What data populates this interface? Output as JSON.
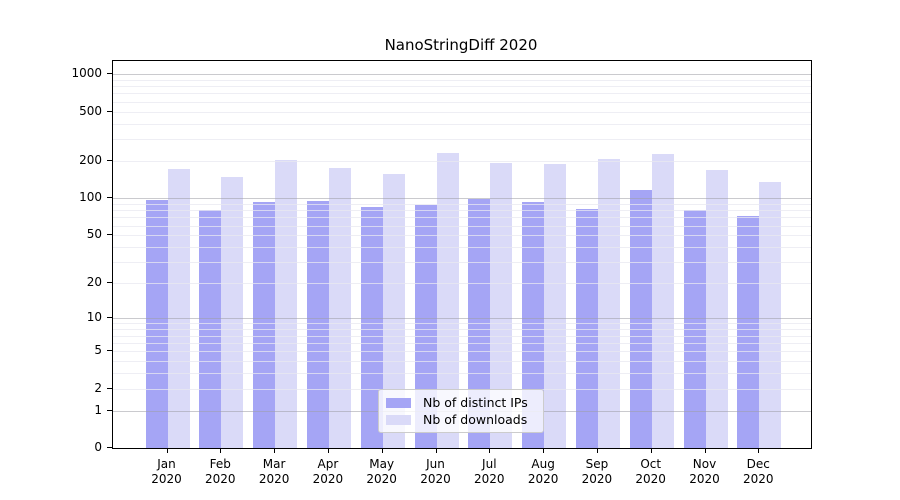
{
  "chart_data": {
    "type": "bar",
    "title": "NanoStringDiff 2020",
    "categories": [
      "Jan",
      "Feb",
      "Mar",
      "Apr",
      "May",
      "Jun",
      "Jul",
      "Aug",
      "Sep",
      "Oct",
      "Nov",
      "Dec"
    ],
    "year_label": "2020",
    "series": [
      {
        "name": "Nb of distinct IPs",
        "color": "#a5a5f5",
        "values": [
          96,
          80,
          94,
          95,
          85,
          89,
          98,
          94,
          82,
          117,
          80,
          72
        ]
      },
      {
        "name": "Nb of downloads",
        "color": "#dadaf8",
        "values": [
          172,
          149,
          205,
          175,
          158,
          232,
          192,
          189,
          206,
          229,
          168,
          135
        ]
      }
    ],
    "yscale": "log1p",
    "y_ticks": [
      0,
      1,
      2,
      5,
      10,
      20,
      50,
      100,
      200,
      500,
      1000
    ],
    "y_minor_gridlines": [
      2,
      3,
      4,
      5,
      6,
      7,
      8,
      9,
      20,
      30,
      40,
      50,
      60,
      70,
      80,
      90,
      200,
      300,
      400,
      500,
      600,
      700,
      800,
      900
    ],
    "y_major_gridlines": [
      1,
      10,
      100,
      1000
    ],
    "ylim": [
      0,
      1276
    ],
    "grid": true,
    "legend_position": "lower center"
  },
  "colors": {
    "bar_ips": "#a5a5f5",
    "bar_downloads": "#dadaf8",
    "grid_minor": "#ececf1",
    "grid_major": "#c7c7cc",
    "axis": "#000000",
    "legend_border": "#cccccc"
  }
}
